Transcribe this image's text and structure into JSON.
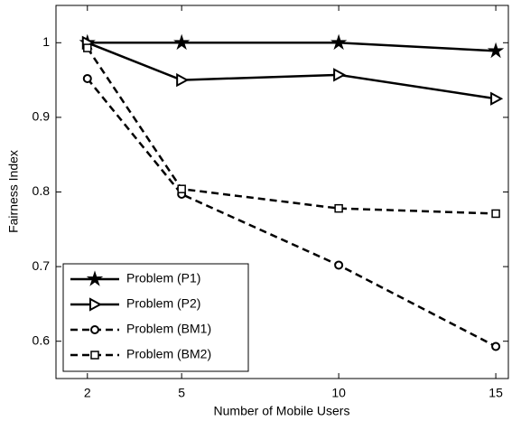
{
  "chart_data": {
    "type": "line",
    "x_label": "Number of Mobile Users",
    "y_label": "Fairness Index",
    "x": [
      2,
      5,
      10,
      15
    ],
    "xlim": [
      1,
      15.4
    ],
    "xticks": [
      2,
      5,
      10,
      15
    ],
    "ylim": [
      0.55,
      1.05
    ],
    "yticks": [
      0.6,
      0.7,
      0.8,
      0.9,
      1
    ],
    "legend": "lower left",
    "series": [
      {
        "name": "Problem (P1)",
        "color": "#000000",
        "marker": "star",
        "dashed": false,
        "values": [
          1,
          1,
          1,
          0.989
        ]
      },
      {
        "name": "Problem (P2)",
        "color": "#000000",
        "marker": "triangle-right",
        "dashed": false,
        "values": [
          1,
          0.95,
          0.957,
          0.925
        ]
      },
      {
        "name": "Problem (BM1)",
        "color": "#000000",
        "marker": "circle",
        "dashed": true,
        "values": [
          0.952,
          0.797,
          0.702,
          0.593
        ]
      },
      {
        "name": "Problem (BM2)",
        "color": "#000000",
        "marker": "square",
        "dashed": true,
        "values": [
          0.993,
          0.804,
          0.778,
          0.771
        ]
      }
    ]
  }
}
